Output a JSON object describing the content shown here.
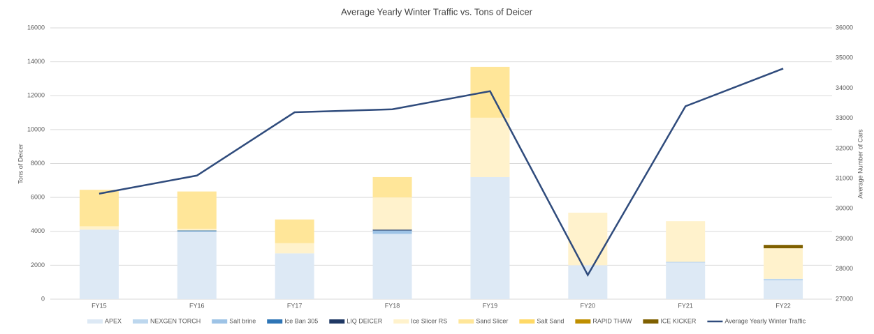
{
  "chart_data": {
    "type": "bar",
    "stacked": true,
    "title": "Average Yearly Winter Traffic vs. Tons of Deicer",
    "y_label": "Tons of Deicer",
    "y2_label": "Average Number of Cars",
    "categories": [
      "FY15",
      "FY16",
      "FY17",
      "FY18",
      "FY19",
      "FY20",
      "FY21",
      "FY22"
    ],
    "ylim": [
      0,
      16000
    ],
    "yticks": [
      0,
      2000,
      4000,
      6000,
      8000,
      10000,
      12000,
      14000,
      16000
    ],
    "y2lim": [
      27000,
      36000
    ],
    "y2ticks": [
      27000,
      28000,
      29000,
      30000,
      31000,
      32000,
      33000,
      34000,
      35000,
      36000
    ],
    "grid": true,
    "legend": "bottom",
    "series": [
      {
        "name": "APEX",
        "color": "#dde9f5",
        "values": [
          4100,
          4000,
          2700,
          3850,
          7200,
          2000,
          2150,
          1100
        ]
      },
      {
        "name": "NEXGEN TORCH",
        "color": "#bdd7ee",
        "values": [
          0,
          0,
          0,
          0,
          0,
          0,
          50,
          100
        ]
      },
      {
        "name": "Salt brine",
        "color": "#9dc3e6",
        "values": [
          0,
          0,
          0,
          200,
          0,
          0,
          0,
          0
        ]
      },
      {
        "name": "Ice Ban 305",
        "color": "#2e75b6",
        "values": [
          0,
          50,
          0,
          0,
          0,
          0,
          0,
          0
        ]
      },
      {
        "name": "LIQ DEICER",
        "color": "#1f3864",
        "values": [
          0,
          0,
          0,
          50,
          0,
          0,
          0,
          0
        ]
      },
      {
        "name": "Ice Slicer RS",
        "color": "#fff2cc",
        "values": [
          200,
          100,
          600,
          1900,
          3500,
          3100,
          2400,
          1800
        ]
      },
      {
        "name": "Sand Slicer",
        "color": "#ffe699",
        "values": [
          2150,
          2200,
          1400,
          1200,
          3000,
          0,
          0,
          0
        ]
      },
      {
        "name": "Salt Sand",
        "color": "#ffd966",
        "values": [
          0,
          0,
          0,
          0,
          0,
          0,
          0,
          0
        ]
      },
      {
        "name": "RAPID THAW",
        "color": "#bf8f00",
        "values": [
          0,
          0,
          0,
          0,
          0,
          0,
          0,
          0
        ]
      },
      {
        "name": "ICE KICKER",
        "color": "#7f6000",
        "values": [
          0,
          0,
          0,
          0,
          0,
          0,
          0,
          200
        ]
      },
      {
        "name": "Average Yearly Winter Traffic",
        "color": "#2f4b7c",
        "type": "line",
        "axis": "y2",
        "values": [
          30500,
          31100,
          33200,
          33300,
          33900,
          27800,
          33400,
          34650
        ]
      }
    ]
  }
}
